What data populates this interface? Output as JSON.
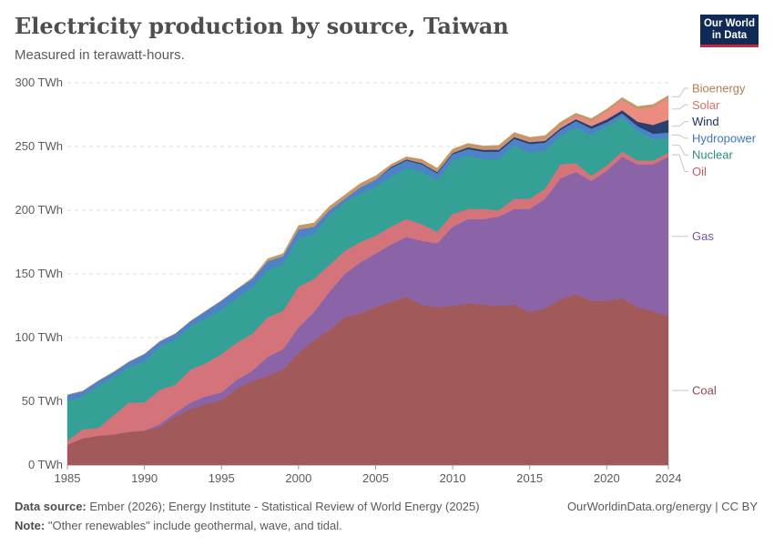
{
  "header": {
    "title": "Electricity production by source, Taiwan",
    "subtitle": "Measured in terawatt-hours.",
    "logo_line1": "Our World",
    "logo_line2": "in Data"
  },
  "footer": {
    "source_label": "Data source:",
    "source_text": "Ember (2026); Energy Institute - Statistical Review of World Energy (2025)",
    "note_label": "Note:",
    "note_text": "\"Other renewables\" include geothermal, wave, and tidal.",
    "credit": "OurWorldinData.org/energy | CC BY"
  },
  "chart_data": {
    "type": "area",
    "stacked": true,
    "title": "Electricity production by source, Taiwan",
    "ylabel": "TWh",
    "ylim": [
      0,
      300
    ],
    "yticks": [
      0,
      50,
      100,
      150,
      200,
      250,
      300
    ],
    "ytick_labels": [
      "0 TWh",
      "50 TWh",
      "100 TWh",
      "150 TWh",
      "200 TWh",
      "250 TWh",
      "300 TWh"
    ],
    "xlim": [
      1985,
      2024
    ],
    "xticks": [
      1985,
      1990,
      1995,
      2000,
      2005,
      2010,
      2015,
      2020,
      2024
    ],
    "x": [
      1985,
      1986,
      1987,
      1988,
      1989,
      1990,
      1991,
      1992,
      1993,
      1994,
      1995,
      1996,
      1997,
      1998,
      1999,
      2000,
      2001,
      2002,
      2003,
      2004,
      2005,
      2006,
      2007,
      2008,
      2009,
      2010,
      2011,
      2012,
      2013,
      2014,
      2015,
      2016,
      2017,
      2018,
      2019,
      2020,
      2021,
      2022,
      2023,
      2024
    ],
    "series": [
      {
        "name": "Coal",
        "color": "#a2595a",
        "values": [
          16,
          21,
          23,
          24,
          26,
          27,
          30,
          38,
          44,
          48,
          51,
          60,
          66,
          70,
          75,
          88,
          98,
          106,
          116,
          119,
          124,
          128,
          132,
          126,
          124,
          125,
          127,
          126,
          125,
          126,
          120,
          123,
          130,
          134,
          129,
          129,
          131,
          124,
          121,
          117
        ]
      },
      {
        "name": "Gas",
        "color": "#8b64a8",
        "values": [
          0,
          0,
          0,
          0,
          0,
          0,
          2,
          3,
          5,
          6,
          6,
          7,
          8,
          15,
          16,
          20,
          22,
          30,
          34,
          40,
          42,
          45,
          47,
          50,
          50,
          62,
          66,
          67,
          70,
          75,
          81,
          86,
          95,
          96,
          94,
          102,
          111,
          112,
          115,
          125
        ]
      },
      {
        "name": "Oil",
        "color": "#d4737a",
        "values": [
          3,
          7,
          6,
          15,
          23,
          22,
          27,
          22,
          26,
          26,
          30,
          29,
          29,
          31,
          30,
          32,
          26,
          21,
          18,
          16,
          14,
          14,
          14,
          13,
          9,
          10,
          8,
          8,
          5,
          8,
          8,
          8,
          11,
          7,
          4,
          4,
          4,
          3,
          3,
          3
        ]
      },
      {
        "name": "Nuclear",
        "color": "#35a095",
        "values": [
          31,
          26,
          33,
          30,
          28,
          32,
          34,
          35,
          34,
          35,
          35,
          35,
          36,
          37,
          37,
          38,
          35,
          39,
          38,
          38,
          38,
          39,
          40,
          41,
          41,
          42,
          42,
          39,
          40,
          42,
          36,
          30,
          22,
          28,
          32,
          31,
          27,
          23,
          17,
          12
        ]
      },
      {
        "name": "Hydropower",
        "color": "#4c83c7",
        "values": [
          5,
          4,
          4,
          4,
          4,
          6,
          4,
          5,
          4,
          6,
          7,
          7,
          7,
          7,
          6,
          7,
          6,
          4,
          3,
          5,
          6,
          7,
          6,
          6,
          5,
          5,
          5,
          6,
          6,
          5,
          7,
          6,
          5,
          5,
          5,
          3,
          3,
          4,
          4,
          4
        ]
      },
      {
        "name": "Wind",
        "color": "#293f6e",
        "values": [
          0,
          0,
          0,
          0,
          0,
          0,
          0,
          0,
          0,
          0,
          0,
          0,
          0,
          0,
          0,
          0,
          0,
          0,
          0,
          0,
          0,
          1,
          1,
          1,
          1,
          1,
          1.5,
          1.5,
          1.5,
          1.5,
          1.5,
          1.5,
          1.5,
          1.5,
          2,
          2.3,
          2.5,
          3.5,
          7,
          10
        ]
      },
      {
        "name": "Solar",
        "color": "#ec8b7f",
        "values": [
          0,
          0,
          0,
          0,
          0,
          0,
          0,
          0,
          0,
          0,
          0,
          0,
          0,
          0,
          0,
          0,
          0,
          0,
          0,
          0,
          0,
          0,
          0,
          0,
          0,
          0,
          0,
          0,
          0.5,
          0.6,
          0.8,
          1.1,
          1.7,
          2.7,
          4,
          6.1,
          8,
          10,
          14,
          17
        ]
      },
      {
        "name": "Bioenergy",
        "color": "#c4976a",
        "values": [
          0,
          0,
          0,
          0,
          0,
          0,
          0,
          0,
          0,
          0,
          0,
          0,
          1,
          2,
          2,
          3,
          3,
          3,
          3,
          3,
          3,
          2,
          2,
          3,
          3,
          3,
          3,
          3,
          3,
          3,
          3,
          3,
          3,
          2,
          2,
          2,
          2,
          2,
          2,
          2
        ]
      }
    ],
    "legend": [
      {
        "name": "Bioenergy",
        "color": "#b67b4d"
      },
      {
        "name": "Solar",
        "color": "#dd6e62"
      },
      {
        "name": "Wind",
        "color": "#1c3260"
      },
      {
        "name": "Hydropower",
        "color": "#3e76bb"
      },
      {
        "name": "Nuclear",
        "color": "#2a8b80"
      },
      {
        "name": "Oil",
        "color": "#c25a63"
      },
      {
        "name": "Gas",
        "color": "#7d559c"
      },
      {
        "name": "Coal",
        "color": "#8e4a4b"
      }
    ],
    "legend_position": "right"
  }
}
